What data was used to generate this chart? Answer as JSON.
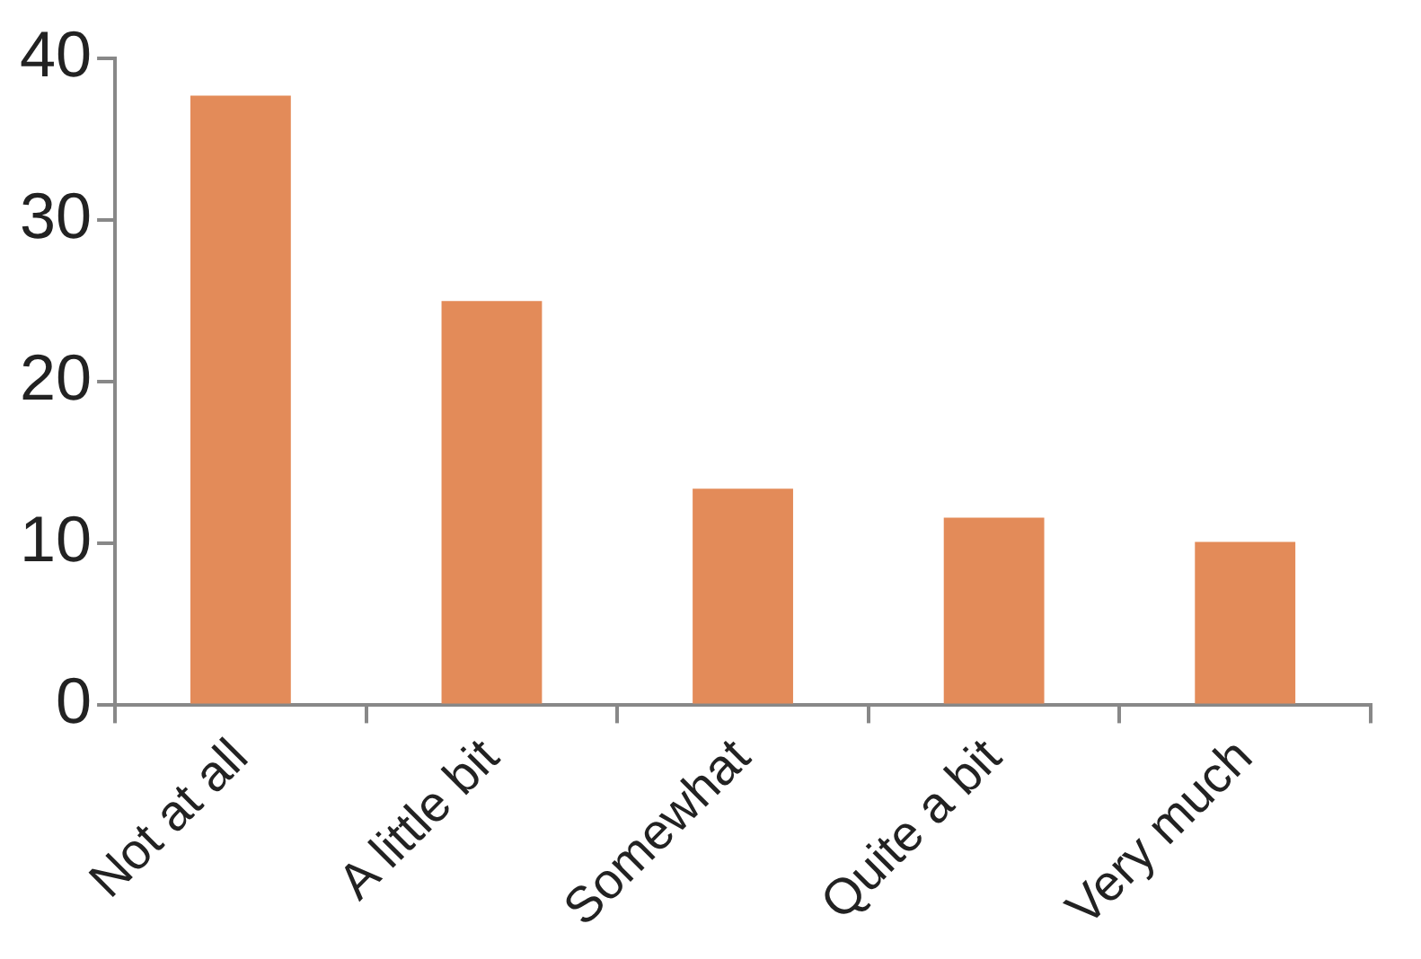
{
  "chart_data": {
    "type": "bar",
    "categories": [
      "Not at all",
      "A little bit",
      "Somewhat",
      "Quite a bit",
      "Very much"
    ],
    "values": [
      37.7,
      25.0,
      13.4,
      11.6,
      10.1
    ],
    "color": "#e38b59",
    "ylim": [
      0,
      40
    ],
    "yticks": [
      0,
      10,
      20,
      30,
      40
    ],
    "grid": false,
    "legend": false
  }
}
